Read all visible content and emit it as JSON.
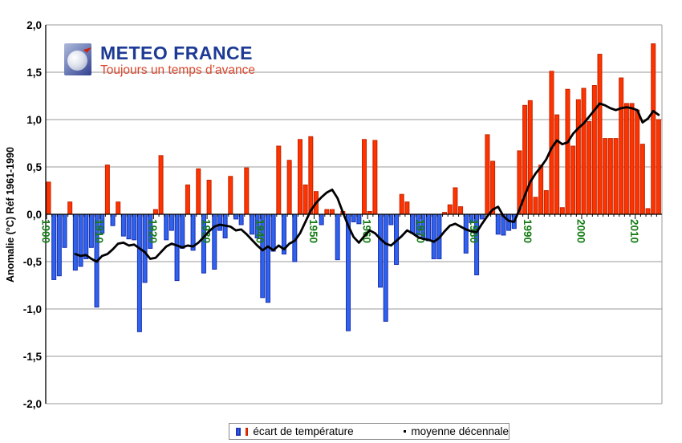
{
  "logo": {
    "title": "METEO FRANCE",
    "tagline": "Toujours un temps d’avance"
  },
  "legend": {
    "temperature_label": "écart de température",
    "mean_label": "moyenne décennale"
  },
  "chart_data": {
    "type": "bar",
    "title": "",
    "xlabel": "",
    "ylabel": "Anomalie (°C) Réf 1961-1990",
    "ylim": [
      -2.0,
      2.0
    ],
    "grid": true,
    "y_tick_labels": [
      "2,0",
      "1,5",
      "1,0",
      "0,5",
      "0,0",
      "-0,5",
      "-1,0",
      "-1,5",
      "-2,0"
    ],
    "y_tick_values": [
      2.0,
      1.5,
      1.0,
      0.5,
      0.0,
      -0.5,
      -1.0,
      -1.5,
      -2.0
    ],
    "decade_labels": [
      "1900",
      "1910",
      "1920",
      "1930",
      "1940",
      "1950",
      "1960",
      "1970",
      "1980",
      "1990",
      "2000",
      "2010"
    ],
    "start_year": 1900,
    "end_year": 2014,
    "series": [
      {
        "name": "écart de température",
        "type": "bar",
        "values": [
          0.34,
          -0.69,
          -0.65,
          -0.35,
          0.13,
          -0.59,
          -0.55,
          -0.47,
          -0.35,
          -0.98,
          -0.2,
          0.52,
          -0.12,
          0.13,
          -0.23,
          -0.26,
          -0.27,
          -1.24,
          -0.72,
          -0.36,
          0.05,
          0.62,
          -0.27,
          -0.17,
          -0.7,
          -0.36,
          0.31,
          -0.38,
          0.48,
          -0.62,
          0.36,
          -0.58,
          -0.17,
          -0.25,
          0.4,
          -0.05,
          -0.11,
          0.49,
          -0.21,
          -0.25,
          -0.88,
          -0.93,
          -0.39,
          0.72,
          -0.42,
          0.57,
          -0.5,
          0.79,
          0.31,
          0.82,
          0.24,
          -0.11,
          0.05,
          0.05,
          -0.48,
          0.03,
          -1.23,
          -0.08,
          -0.1,
          0.79,
          0.03,
          0.78,
          -0.77,
          -1.13,
          -0.11,
          -0.53,
          0.21,
          0.13,
          -0.2,
          -0.22,
          -0.25,
          -0.28,
          -0.47,
          -0.47,
          0.02,
          0.1,
          0.28,
          0.08,
          -0.41,
          -0.09,
          -0.64,
          -0.05,
          0.84,
          0.56,
          -0.21,
          -0.22,
          -0.17,
          -0.15,
          0.67,
          1.15,
          1.2,
          0.18,
          0.52,
          0.25,
          1.51,
          1.05,
          0.07,
          1.32,
          0.72,
          1.21,
          1.33,
          0.98,
          1.36,
          1.69,
          0.8,
          0.8,
          0.8,
          1.44,
          1.17,
          1.17,
          1.1,
          0.74,
          0.06,
          1.8,
          1.0
        ]
      },
      {
        "name": "moyenne décennale",
        "type": "line",
        "start_year": 1905,
        "values": [
          -0.42,
          -0.44,
          -0.43,
          -0.47,
          -0.5,
          -0.44,
          -0.42,
          -0.37,
          -0.31,
          -0.3,
          -0.33,
          -0.32,
          -0.36,
          -0.4,
          -0.47,
          -0.46,
          -0.4,
          -0.34,
          -0.31,
          -0.33,
          -0.35,
          -0.33,
          -0.34,
          -0.3,
          -0.24,
          -0.18,
          -0.13,
          -0.11,
          -0.12,
          -0.13,
          -0.17,
          -0.16,
          -0.21,
          -0.27,
          -0.33,
          -0.38,
          -0.34,
          -0.38,
          -0.33,
          -0.37,
          -0.31,
          -0.28,
          -0.2,
          -0.08,
          0.04,
          0.12,
          0.18,
          0.23,
          0.26,
          0.17,
          0.02,
          -0.12,
          -0.24,
          -0.3,
          -0.23,
          -0.17,
          -0.2,
          -0.26,
          -0.31,
          -0.33,
          -0.28,
          -0.23,
          -0.17,
          -0.2,
          -0.24,
          -0.26,
          -0.27,
          -0.29,
          -0.25,
          -0.18,
          -0.12,
          -0.1,
          -0.13,
          -0.16,
          -0.18,
          -0.19,
          -0.1,
          -0.02,
          0.05,
          0.08,
          -0.02,
          -0.07,
          -0.08,
          0.05,
          0.2,
          0.34,
          0.43,
          0.5,
          0.58,
          0.7,
          0.78,
          0.74,
          0.76,
          0.85,
          0.91,
          0.96,
          1.03,
          1.1,
          1.17,
          1.15,
          1.12,
          1.1,
          1.12,
          1.13,
          1.12,
          1.1,
          0.97,
          1.01,
          1.09,
          1.05
        ]
      }
    ],
    "colors": {
      "positive_bar": "#ff3300",
      "positive_border": "#c22500",
      "negative_bar": "#2f62ed",
      "negative_border": "#1b2fae",
      "line": "#000000",
      "grid": "#999999",
      "axis": "#000000",
      "decade_label": "#177d17"
    }
  }
}
